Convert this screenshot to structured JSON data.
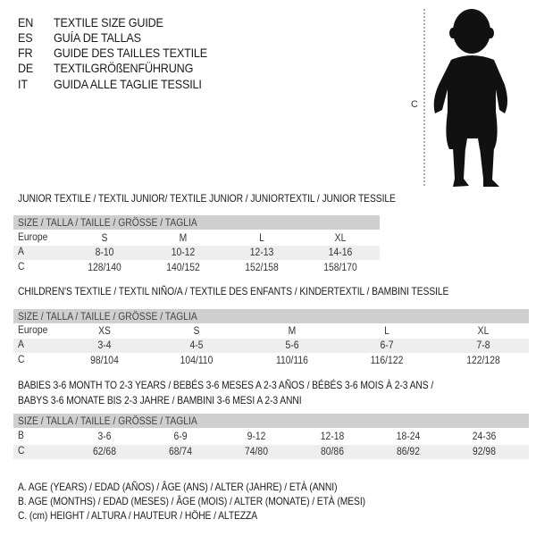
{
  "languages": [
    {
      "code": "EN",
      "text": "TEXTILE SIZE GUIDE"
    },
    {
      "code": "ES",
      "text": "GUÍA DE TALLAS"
    },
    {
      "code": "FR",
      "text": "GUIDE DES TAILLES TEXTILE"
    },
    {
      "code": "DE",
      "text": "TEXTILGRÖßENFÜHRUNG"
    },
    {
      "code": "IT",
      "text": "GUIDA ALLE TAGLIE TESSILI"
    }
  ],
  "figure": {
    "label": "C"
  },
  "tables": [
    {
      "title": "JUNIOR TEXTILE / TEXTIL JUNIOR/ TEXTILE JUNIOR / JUNIORTEXTIL / JUNIOR TESSILE",
      "header": "SIZE / TALLA / TAILLE / GRÖSSE / TAGLIA",
      "rows": [
        {
          "label": "Europe",
          "values": [
            "S",
            "M",
            "L",
            "XL"
          ]
        },
        {
          "label": "A",
          "values": [
            "8-10",
            "10-12",
            "12-13",
            "14-16"
          ]
        },
        {
          "label": "C",
          "values": [
            "128/140",
            "140/152",
            "152/158",
            "158/170"
          ]
        }
      ]
    },
    {
      "title": "CHILDREN'S TEXTILE / TEXTIL NIÑO/A / TEXTILE DES ENFANTS / KINDERTEXTIL / BAMBINI TESSILE",
      "header": "SIZE / TALLA / TAILLE / GRÖSSE / TAGLIA",
      "rows": [
        {
          "label": "Europe",
          "values": [
            "XS",
            "S",
            "M",
            "L",
            "XL"
          ]
        },
        {
          "label": "A",
          "values": [
            "3-4",
            "4-5",
            "5-6",
            "6-7",
            "7-8"
          ]
        },
        {
          "label": "C",
          "values": [
            "98/104",
            "104/110",
            "110/116",
            "116/122",
            "122/128"
          ]
        }
      ]
    },
    {
      "title": "BABIES 3-6 MONTH TO 2-3 YEARS / BEBÉS 3-6 MESES A 2-3 AÑOS / BÉBÉS 3-6 MOIS À 2-3 ANS /",
      "title2": "BABYS 3-6 MONATE BIS 2-3 JAHRE / BAMBINI 3-6 MESI A 2-3 ANNI",
      "header": "SIZE / TALLA / TAILLE / GRÖSSE / TAGLIA",
      "rows": [
        {
          "label": "B",
          "values": [
            "3-6",
            "6-9",
            "9-12",
            "12-18",
            "18-24",
            "24-36"
          ]
        },
        {
          "label": "C",
          "values": [
            "62/68",
            "68/74",
            "74/80",
            "80/86",
            "86/92",
            "92/98"
          ]
        }
      ]
    }
  ],
  "legend": [
    "A. AGE (YEARS) / EDAD (AÑOS) / ÂGE (ANS) / ALTER (JAHRE) / ETÀ (ANNI)",
    "B. AGE (MONTHS) / EDAD (MESES) / ÂGE (MOIS) / ALTER (MONATE) / ETÀ (MESI)",
    "C. (cm) HEIGHT / ALTURA / HAUTEUR / HÖHE / ALTEZZA"
  ]
}
